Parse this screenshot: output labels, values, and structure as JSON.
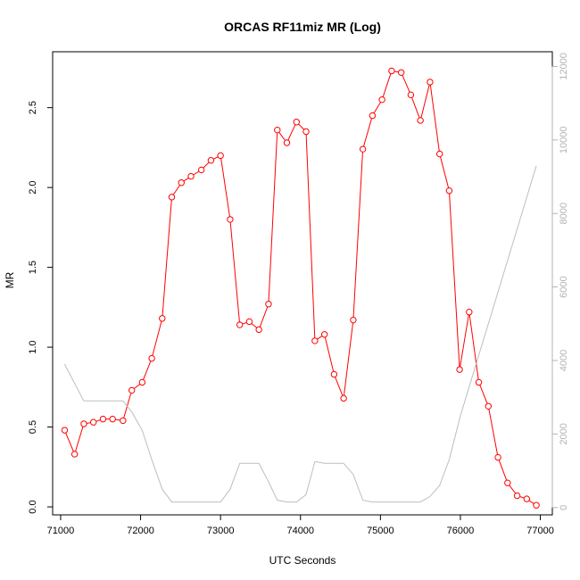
{
  "chart_data": {
    "type": "line",
    "title": "ORCAS RF11miz MR (Log)",
    "xlabel": "UTC Seconds",
    "ylabel": "MR",
    "xlim": [
      70900,
      77150
    ],
    "ylim": [
      -0.05,
      2.85
    ],
    "y2lim": [
      -200,
      12400
    ],
    "x_ticks": [
      71000,
      72000,
      73000,
      74000,
      75000,
      76000,
      77000
    ],
    "y_ticks": [
      0.0,
      0.5,
      1.0,
      1.5,
      2.0,
      2.5
    ],
    "y_tick_labels": [
      "0.0",
      "0.5",
      "1.0",
      "1.5",
      "2.0",
      "2.5"
    ],
    "y2_ticks": [
      0,
      2000,
      4000,
      6000,
      8000,
      10000,
      12000
    ],
    "grid": false,
    "legend": "none",
    "series": [
      {
        "color": "#ff0000",
        "axis": "left",
        "markers": "open-circle",
        "x": [
          71050,
          71175,
          71290,
          71410,
          71530,
          71650,
          71780,
          71890,
          72020,
          72140,
          72270,
          72390,
          72510,
          72630,
          72760,
          72880,
          73000,
          73120,
          73240,
          73360,
          73480,
          73600,
          73710,
          73830,
          73950,
          74070,
          74180,
          74300,
          74420,
          74540,
          74660,
          74780,
          74900,
          75020,
          75140,
          75260,
          75380,
          75500,
          75620,
          75740,
          75860,
          75990,
          76110,
          76230,
          76350,
          76470,
          76590,
          76710,
          76830,
          76950
        ],
        "y": [
          0.48,
          0.33,
          0.52,
          0.53,
          0.55,
          0.55,
          0.54,
          0.73,
          0.78,
          0.93,
          1.18,
          1.94,
          2.03,
          2.07,
          2.11,
          2.17,
          2.2,
          1.8,
          1.14,
          1.16,
          1.11,
          1.27,
          2.36,
          2.28,
          2.41,
          2.35,
          1.04,
          1.08,
          0.83,
          0.68,
          1.17,
          2.24,
          2.45,
          2.55,
          2.73,
          2.72,
          2.58,
          2.42,
          2.66,
          2.21,
          1.98,
          0.86,
          1.22,
          0.78,
          0.63,
          0.31,
          0.15,
          0.07,
          0.05,
          0.01
        ]
      },
      {
        "color": "#bebebe",
        "axis": "right",
        "markers": "none",
        "x": [
          71050,
          71290,
          71410,
          71530,
          71650,
          71780,
          71890,
          72020,
          72140,
          72270,
          72390,
          72510,
          72630,
          72760,
          72880,
          73000,
          73120,
          73240,
          73360,
          73480,
          73600,
          73710,
          73830,
          73950,
          74070,
          74180,
          74300,
          74420,
          74540,
          74660,
          74780,
          74900,
          75020,
          75140,
          75260,
          75380,
          75500,
          75620,
          75740,
          75860,
          76000,
          76950
        ],
        "y": [
          3900,
          2900,
          2900,
          2900,
          2900,
          2900,
          2600,
          2100,
          1300,
          500,
          150,
          150,
          150,
          150,
          150,
          150,
          500,
          1200,
          1200,
          1200,
          700,
          200,
          150,
          150,
          350,
          1250,
          1200,
          1200,
          1200,
          900,
          200,
          150,
          150,
          150,
          150,
          150,
          150,
          300,
          600,
          1300,
          2500,
          9300
        ]
      }
    ]
  }
}
